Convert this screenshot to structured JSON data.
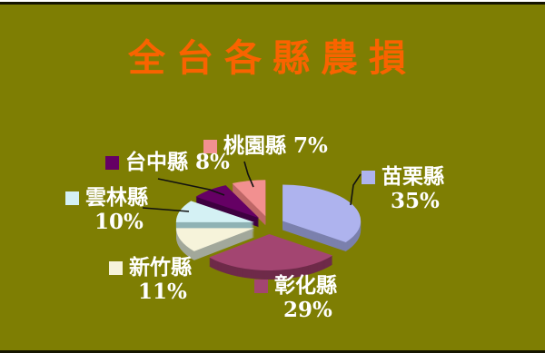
{
  "frame": {
    "bg": "#7e7e03",
    "border_color": "#151500",
    "outer_bg": "#ffffff"
  },
  "title": {
    "text": "全台各縣農損",
    "color": "#f96300"
  },
  "chart_data": {
    "type": "pie",
    "title": "全台各縣農損",
    "is_3d": true,
    "exploded": true,
    "direction": "clockwise",
    "start_angle_deg": 0,
    "unit": "percent",
    "label_color": "#ffffff",
    "leader_line_color": "#111111",
    "slices": [
      {
        "id": "miaoli",
        "label": "苗栗縣",
        "value": 35,
        "pct_label": "35%",
        "color": "#aeb3ee",
        "side_color": "#7b80ad"
      },
      {
        "id": "changhua",
        "label": "彰化縣",
        "value": 29,
        "pct_label": "29%",
        "color": "#a34571",
        "side_color": "#6e2a49"
      },
      {
        "id": "hsinchu",
        "label": "新竹縣",
        "value": 11,
        "pct_label": "11%",
        "color": "#f6f3da",
        "side_color": "#a2a89b"
      },
      {
        "id": "yunlin",
        "label": "雲林縣",
        "value": 10,
        "pct_label": "10%",
        "color": "#d4f1f4",
        "side_color": "#8fb2b4"
      },
      {
        "id": "taichung",
        "label": "台中縣",
        "value": 8,
        "pct_label": "8%",
        "color": "#650064",
        "side_color": "#3f0040"
      },
      {
        "id": "taoyuan",
        "label": "桃園縣",
        "value": 7,
        "pct_label": "7%",
        "color": "#f29090",
        "side_color": "#bf6767"
      }
    ]
  }
}
